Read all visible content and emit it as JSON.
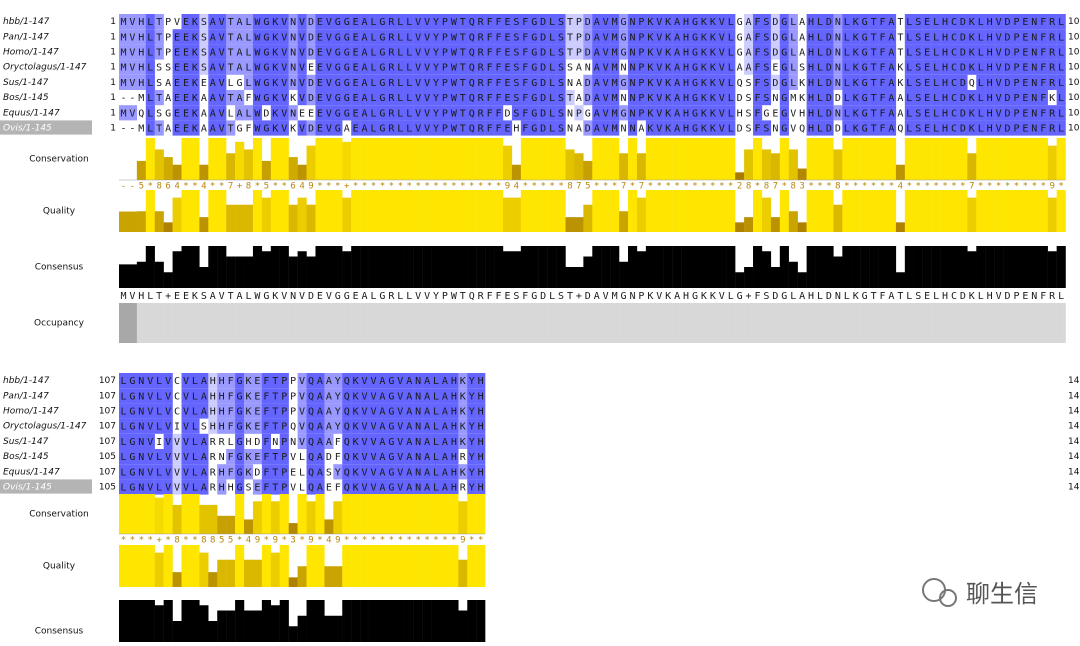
{
  "blocks": [
    {
      "rows": [
        {
          "name": "hbb/1-147",
          "start": 1,
          "sequence": "MVHLTPVEKSAVTALWGKVNVDEVGGEALGRLLVVYPWTQRFFESFGDLSTPDAVMGNPKVKAHGKKVLGAFSDGLAHLDNLKGTFATLSELHCDKLHVDPENFRL",
          "end": "10"
        },
        {
          "name": "Pan/1-147",
          "start": 1,
          "sequence": "MVHLTPEEKSAVTALWGKVNVDEVGGEALGRLLVVYPWTQRFFESFGDLSTPDAVMGNPKVKAHGKKVLGAFSDGLAHLDNLKGTFATLSELHCDKLHVDPENFRL",
          "end": "10"
        },
        {
          "name": "Homo/1-147",
          "start": 1,
          "sequence": "MVHLTPEEKSAVTALWGKVNVDEVGGEALGRLLVVYPWTQRFFESFGDLSTPDAVMGNPKVKAHGKKVLGAFSDGLAHLDNLKGTFATLSELHCDKLHVDPENFRL",
          "end": "10"
        },
        {
          "name": "Oryctolagus/1-147",
          "start": 1,
          "sequence": "MVHLSSEEKSAVTALWGKVNVEEVGGEALGRLLVVYPWTQRFFESFGDLSSANAVMNNPKVKAHGKKVLAAFSEGLSHLDNLKGTFAKLSELHCDKLHVDPENFRL",
          "end": "10"
        },
        {
          "name": "Sus/1-147",
          "start": 1,
          "sequence": "MVHLSAEEKEAVLGLWGKVNVDEVGGEALGRLLVVYPWTQRFFESFGDLSNADAVMGNPKVKAHGKKVLQSFSDGLKHLDNLKGTFAKLSELHCDQLHVDPENFRL",
          "end": "10"
        },
        {
          "name": "Bos/1-145",
          "start": 1,
          "sequence": "--MLTAEEKAAVTAFWGKVKVDEVGGEALGRLLVVYPWTQRFFESFGDLSTADAVMNNPKVKAHGKKVLDSFSNGMKHLDDLKGTFAALSELHCDKLHVDPENFKL",
          "end": "10"
        },
        {
          "name": "Equus/1-147",
          "start": 1,
          "sequence": "MVQLSGEEKAAVLALWDKVNEEEVGGEALGRLLVVYPWTQRFFDSFGDLSNPGAVMGNPKVKAHGKKVLHSFGEGVHHLDNLKGTFAALSELHCDKLHVDPENFRL",
          "end": "10"
        },
        {
          "name": "Ovis/1-145",
          "start": 1,
          "sequence": "--MLTAEEKAAVTGFWGKVKVDEVGAEALGRLLVVYPWTQRFFEHFGDLSNADAVMNNAKVKAHGKKVLDSFSNGVQHLDDLKGTFAQLSELHCDKLHVDPENFRL",
          "end": "10"
        }
      ],
      "conservation": "--5*864**4**7+8*5**649***+*****************94*****875***7*7**********28*87*83***8******4*******7********9*",
      "consensus": "MVHLT+EEKSAVTALWGKVNVDEVGGEALGRLLVVYPWTQRFFESFGDLST+DAVMGNPKVKAHGKKVLG+FSDGLAHLDNLKGTFATLSELHCDKLHVDPENFRL"
    },
    {
      "rows": [
        {
          "name": "hbb/1-147",
          "start": 107,
          "sequence": "LGNVLVCVLAHHFGKEFTPPVQAAYQKVVAGVANALAHKYH",
          "end": "14"
        },
        {
          "name": "Pan/1-147",
          "start": 107,
          "sequence": "LGNVLVCVLAHHFGKEFTPPVQAAYQKVVAGVANALAHKYH",
          "end": "14"
        },
        {
          "name": "Homo/1-147",
          "start": 107,
          "sequence": "LGNVLVCVLAHHFGKEFTPPVQAAYQKVVAGVANALAHKYH",
          "end": "14"
        },
        {
          "name": "Oryctolagus/1-147",
          "start": 107,
          "sequence": "LGNVLVIVLSHHFGKEFTPQVQAAYQKVVAGVANALAHKYH",
          "end": "14"
        },
        {
          "name": "Sus/1-147",
          "start": 107,
          "sequence": "LGNVIVVVLARRLGHDFNPNVQAAFQKVVAGVANALAHKYH",
          "end": "14"
        },
        {
          "name": "Bos/1-145",
          "start": 105,
          "sequence": "LGNVLVVVLARNFGKEFTPVLQADFQKVVAGVANALAHRYH",
          "end": "14"
        },
        {
          "name": "Equus/1-147",
          "start": 107,
          "sequence": "LGNVLVVVLARHFGKDFTPELQASYQKVVAGVANALAHKYH",
          "end": "14"
        },
        {
          "name": "Ovis/1-145",
          "start": 105,
          "sequence": "LGNVLVVVLARHHGSEFTPVLQAEFQKVVAGVANALAHRYH",
          "end": "14"
        }
      ],
      "conservation": "****+*8**8855*49*9*3*9*49*************9**"
    }
  ],
  "annotation_labels": {
    "conservation": "Conservation",
    "quality": "Quality",
    "consensus": "Consensus",
    "occupancy": "Occupancy"
  },
  "watermark": "聊生信"
}
